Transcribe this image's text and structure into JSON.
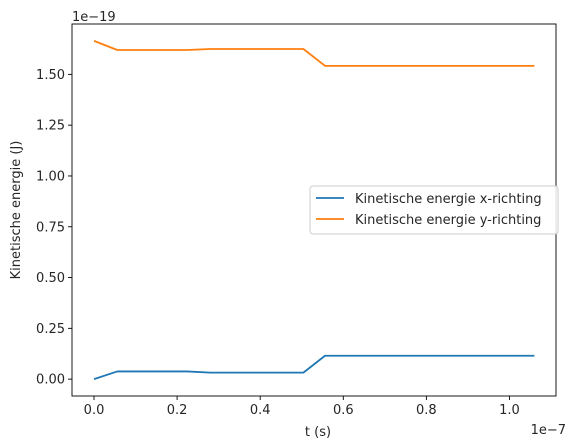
{
  "chart_data": {
    "type": "line",
    "xlabel": "t (s)",
    "ylabel": "Kinetische energie (J)",
    "x_offset_label": "1e−7",
    "y_offset_label": "1e−19",
    "x_scale": 1e-07,
    "y_scale": 1e-19,
    "xlim": [
      -0.053,
      1.112
    ],
    "ylim": [
      -0.083,
      1.748
    ],
    "x_ticks": [
      0.0,
      0.2,
      0.4,
      0.6,
      0.8,
      1.0
    ],
    "x_tick_labels": [
      "0.0",
      "0.2",
      "0.4",
      "0.6",
      "0.8",
      "1.0"
    ],
    "y_ticks": [
      0.0,
      0.25,
      0.5,
      0.75,
      1.0,
      1.25,
      1.5
    ],
    "y_tick_labels": [
      "0.00",
      "0.25",
      "0.50",
      "0.75",
      "1.00",
      "1.25",
      "1.50"
    ],
    "legend_position": "center-right",
    "series": [
      {
        "name": "Kinetische energie x-richting",
        "color": "#1f77b4",
        "x": [
          0.0,
          0.056,
          0.112,
          0.168,
          0.224,
          0.28,
          0.336,
          0.392,
          0.448,
          0.504,
          0.556,
          0.612,
          0.668,
          0.724,
          0.78,
          0.836,
          0.892,
          0.948,
          1.004,
          1.06
        ],
        "y": [
          0.0,
          0.038,
          0.038,
          0.038,
          0.038,
          0.032,
          0.032,
          0.032,
          0.032,
          0.032,
          0.115,
          0.115,
          0.115,
          0.115,
          0.115,
          0.115,
          0.115,
          0.115,
          0.115,
          0.115
        ]
      },
      {
        "name": "Kinetische energie y-richting",
        "color": "#ff7f0e",
        "x": [
          0.0,
          0.056,
          0.112,
          0.168,
          0.224,
          0.28,
          0.336,
          0.392,
          0.448,
          0.504,
          0.556,
          0.612,
          0.668,
          0.724,
          0.78,
          0.836,
          0.892,
          0.948,
          1.004,
          1.06
        ],
        "y": [
          1.665,
          1.62,
          1.62,
          1.62,
          1.62,
          1.625,
          1.625,
          1.625,
          1.625,
          1.625,
          1.542,
          1.542,
          1.542,
          1.542,
          1.542,
          1.542,
          1.542,
          1.542,
          1.542,
          1.542
        ]
      }
    ]
  }
}
